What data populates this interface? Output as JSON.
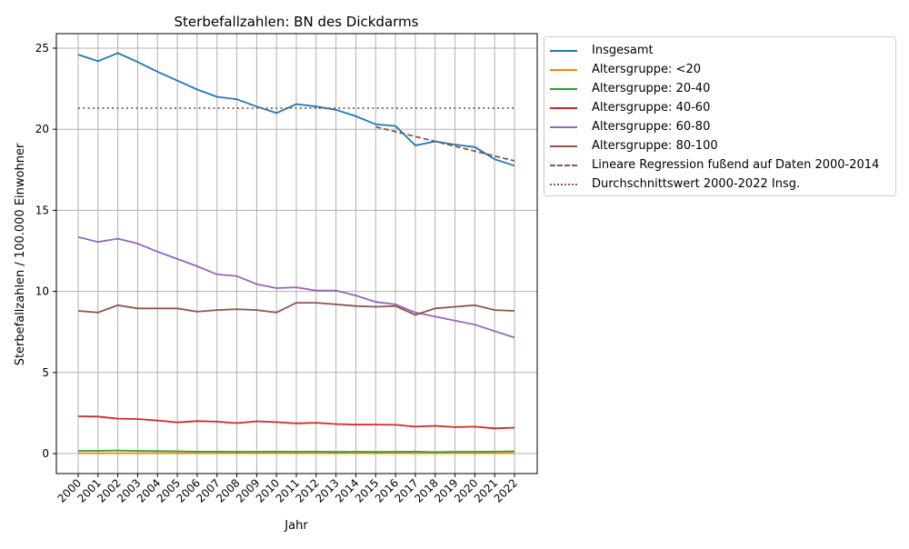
{
  "chart_data": {
    "type": "line",
    "title": "Sterbefallzahlen: BN des Dickdarms",
    "xlabel": "Jahr",
    "ylabel": "Sterbefallzahlen / 100.000 Einwohner",
    "ylim": [
      -1.2,
      26
    ],
    "yticks": [
      0,
      5,
      10,
      15,
      20,
      25
    ],
    "grid": true,
    "legend_position": "outside upper right",
    "x": [
      2000,
      2001,
      2002,
      2003,
      2004,
      2005,
      2006,
      2007,
      2008,
      2009,
      2010,
      2011,
      2012,
      2013,
      2014,
      2015,
      2016,
      2017,
      2018,
      2019,
      2020,
      2021,
      2022
    ],
    "series": [
      {
        "name": "Insgesamt",
        "color": "#1f77b4",
        "style": "solid",
        "values": [
          24.6,
          24.2,
          24.7,
          24.15,
          23.55,
          23.0,
          22.45,
          22.0,
          21.85,
          21.4,
          21.0,
          21.55,
          21.4,
          21.2,
          20.8,
          20.3,
          20.2,
          19.0,
          19.25,
          19.05,
          18.9,
          18.15,
          17.75
        ]
      },
      {
        "name": "Altersgruppe: <20",
        "color": "#ff7f0e",
        "style": "solid",
        "values": [
          0.02,
          0.02,
          0.02,
          0.02,
          0.02,
          0.02,
          0.02,
          0.02,
          0.02,
          0.02,
          0.02,
          0.02,
          0.02,
          0.02,
          0.02,
          0.02,
          0.02,
          0.02,
          0.02,
          0.02,
          0.02,
          0.02,
          0.02
        ]
      },
      {
        "name": "Altersgruppe: 20-40",
        "color": "#2ca02c",
        "style": "solid",
        "values": [
          0.17,
          0.17,
          0.19,
          0.16,
          0.15,
          0.14,
          0.12,
          0.12,
          0.11,
          0.11,
          0.12,
          0.11,
          0.12,
          0.1,
          0.11,
          0.1,
          0.11,
          0.12,
          0.09,
          0.11,
          0.11,
          0.12,
          0.14
        ]
      },
      {
        "name": "Altersgruppe: 40-60",
        "color": "#d62728",
        "style": "solid",
        "values": [
          2.3,
          2.28,
          2.15,
          2.13,
          2.04,
          1.92,
          2.0,
          1.97,
          1.88,
          1.99,
          1.94,
          1.86,
          1.9,
          1.82,
          1.78,
          1.79,
          1.77,
          1.66,
          1.71,
          1.63,
          1.66,
          1.55,
          1.6
        ]
      },
      {
        "name": "Altersgruppe: 60-80",
        "color": "#9467bd",
        "style": "solid",
        "values": [
          13.35,
          13.05,
          13.25,
          12.95,
          12.45,
          12.0,
          11.55,
          11.05,
          10.95,
          10.45,
          10.2,
          10.25,
          10.05,
          10.05,
          9.75,
          9.35,
          9.2,
          8.7,
          8.45,
          8.2,
          7.95,
          7.55,
          7.15
        ]
      },
      {
        "name": "Altersgruppe: 80-100",
        "color": "#8c564b",
        "style": "solid",
        "values": [
          8.8,
          8.7,
          9.15,
          8.95,
          8.95,
          8.95,
          8.75,
          8.85,
          8.9,
          8.85,
          8.7,
          9.3,
          9.3,
          9.2,
          9.1,
          9.05,
          9.1,
          8.55,
          8.95,
          9.05,
          9.15,
          8.85,
          8.8
        ]
      },
      {
        "name": "Lineare Regression fußend auf Daten 2000-2014",
        "color": "#8c564b",
        "style": "dashed",
        "x": [
          2015,
          2022
        ],
        "values": [
          20.15,
          18.05
        ]
      },
      {
        "name": "Durchschnittswert 2000-2022 Insg.",
        "color": "#8c564b",
        "style": "dotted",
        "x": [
          2000,
          2022
        ],
        "values": [
          21.3,
          21.3
        ]
      }
    ]
  }
}
